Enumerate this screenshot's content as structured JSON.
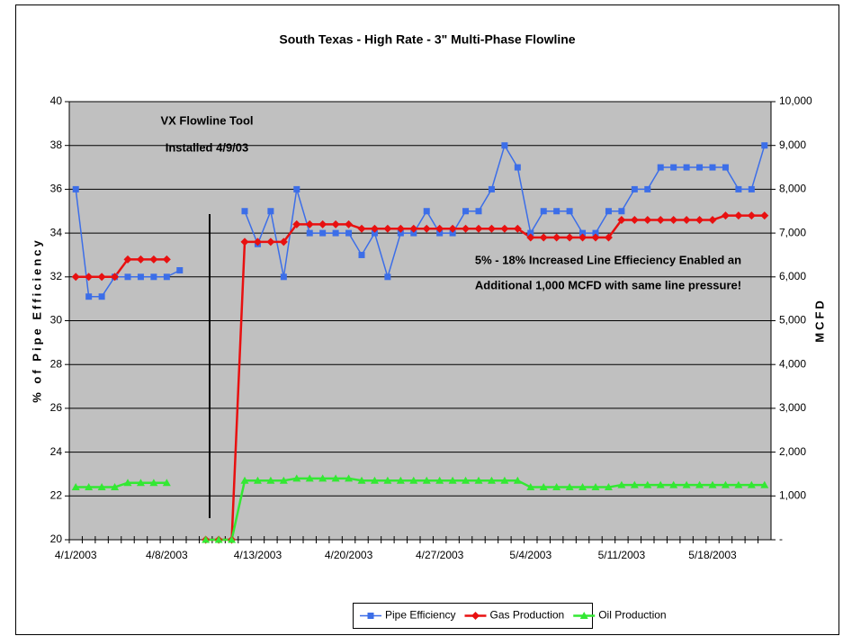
{
  "chart_data": {
    "type": "line",
    "title": "South Texas -  High Rate - 3\" Multi-Phase Flowline",
    "ylabel": "% of Pipe Efficiency",
    "y2label": "MCFD",
    "annotations": [
      "VX Flowline Tool",
      "Installed 4/9/03",
      "5% - 18% Increased Line Effieciency Enabled an",
      "Additional 1,000 MCFD with same line pressure!"
    ],
    "categories": [
      "4/1/2003",
      null,
      null,
      null,
      null,
      null,
      null,
      "4/8/2003",
      null,
      null,
      null,
      null,
      null,
      null,
      "4/13/2003",
      null,
      null,
      null,
      null,
      null,
      null,
      "4/20/2003",
      null,
      null,
      null,
      null,
      null,
      null,
      "4/27/2003",
      null,
      null,
      null,
      null,
      null,
      null,
      "5/4/2003",
      null,
      null,
      null,
      null,
      null,
      null,
      "5/11/2003",
      null,
      null,
      null,
      null,
      null,
      null,
      "5/18/2003",
      null,
      null,
      null,
      null
    ],
    "ylim": [
      20,
      40
    ],
    "yticks": [
      20,
      22,
      24,
      26,
      28,
      30,
      32,
      34,
      36,
      38,
      40
    ],
    "y2lim": [
      0,
      10000
    ],
    "y2ticks": [
      {
        "value": 0,
        "label": "-"
      },
      {
        "value": 1000,
        "label": "1,000"
      },
      {
        "value": 2000,
        "label": "2,000"
      },
      {
        "value": 3000,
        "label": "3,000"
      },
      {
        "value": 4000,
        "label": "4,000"
      },
      {
        "value": 5000,
        "label": "5,000"
      },
      {
        "value": 6000,
        "label": "6,000"
      },
      {
        "value": 7000,
        "label": "7,000"
      },
      {
        "value": 8000,
        "label": "8,000"
      },
      {
        "value": 9000,
        "label": "9,000"
      },
      {
        "value": 10000,
        "label": "10,000"
      }
    ],
    "grid": true,
    "series": [
      {
        "name": "Pipe Efficiency",
        "color": "#3c6ee8",
        "marker": "square",
        "values": [
          36,
          31.1,
          31.1,
          32,
          32,
          32,
          32,
          32,
          32.3,
          null,
          null,
          null,
          null,
          35,
          33.5,
          35,
          32,
          36,
          34,
          34,
          34,
          34,
          33,
          34,
          32,
          34,
          34,
          35,
          34,
          34,
          35,
          35,
          36,
          38,
          37,
          34,
          35,
          35,
          35,
          34,
          34,
          35,
          35,
          36,
          36,
          37,
          37,
          37,
          37,
          37,
          37,
          36,
          36,
          38
        ]
      },
      {
        "name": "Gas Production",
        "color": "#e81010",
        "marker": "diamond",
        "axis": "y2",
        "values": [
          6000,
          6000,
          6000,
          6000,
          6400,
          6400,
          6400,
          6400,
          null,
          null,
          0,
          0,
          0,
          6800,
          6800,
          6800,
          6800,
          7200,
          7200,
          7200,
          7200,
          7200,
          7100,
          7100,
          7100,
          7100,
          7100,
          7100,
          7100,
          7100,
          7100,
          7100,
          7100,
          7100,
          7100,
          6900,
          6900,
          6900,
          6900,
          6900,
          6900,
          6900,
          7300,
          7300,
          7300,
          7300,
          7300,
          7300,
          7300,
          7300,
          7400,
          7400,
          7400,
          7400
        ]
      },
      {
        "name": "Oil Production",
        "color": "#33e833",
        "marker": "triangle",
        "axis": "y2",
        "values": [
          1200,
          1200,
          1200,
          1200,
          1300,
          1300,
          1300,
          1300,
          null,
          null,
          0,
          0,
          0,
          1350,
          1350,
          1350,
          1350,
          1400,
          1400,
          1400,
          1400,
          1400,
          1350,
          1350,
          1350,
          1350,
          1350,
          1350,
          1350,
          1350,
          1350,
          1350,
          1350,
          1350,
          1350,
          1200,
          1200,
          1200,
          1200,
          1200,
          1200,
          1200,
          1250,
          1250,
          1250,
          1250,
          1250,
          1250,
          1250,
          1250,
          1250,
          1250,
          1250,
          1250
        ]
      }
    ]
  }
}
